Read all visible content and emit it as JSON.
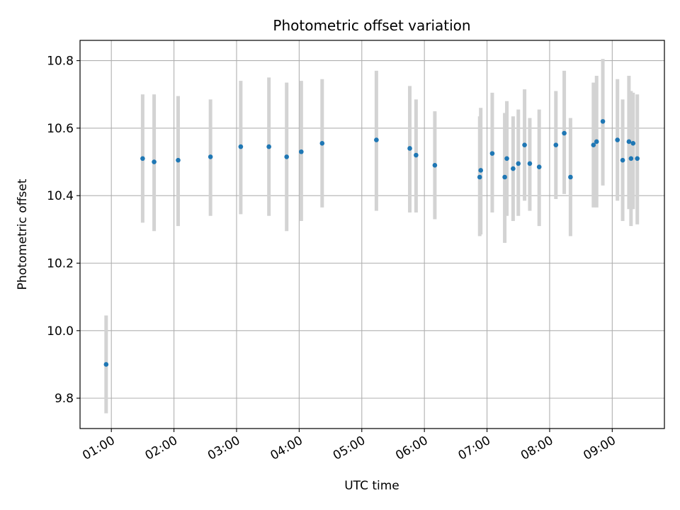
{
  "chart_data": {
    "type": "scatter",
    "title": "Photometric offset variation",
    "xlabel": "UTC time",
    "ylabel": "Photometric offset",
    "x_tick_labels": [
      "01:00",
      "02:00",
      "03:00",
      "04:00",
      "05:00",
      "06:00",
      "07:00",
      "08:00",
      "09:00"
    ],
    "y_tick_labels": [
      "9.8",
      "10.0",
      "10.2",
      "10.4",
      "10.6",
      "10.8"
    ],
    "y_ticks": [
      9.8,
      10.0,
      10.2,
      10.4,
      10.6,
      10.8
    ],
    "xlim": [
      "00:30",
      "09:50"
    ],
    "ylim": [
      9.71,
      10.86
    ],
    "grid": true,
    "colors": {
      "marker": "#1f77b4",
      "errorbar": "#d3d3d3",
      "grid": "#b0b0b0"
    },
    "points": [
      {
        "x": "00:55",
        "y": 9.9,
        "lo": 9.755,
        "hi": 10.045
      },
      {
        "x": "01:30",
        "y": 10.51,
        "lo": 10.32,
        "hi": 10.7
      },
      {
        "x": "01:41",
        "y": 10.5,
        "lo": 10.295,
        "hi": 10.7
      },
      {
        "x": "02:04",
        "y": 10.505,
        "lo": 10.31,
        "hi": 10.695
      },
      {
        "x": "02:35",
        "y": 10.515,
        "lo": 10.34,
        "hi": 10.685
      },
      {
        "x": "03:04",
        "y": 10.545,
        "lo": 10.345,
        "hi": 10.74
      },
      {
        "x": "03:31",
        "y": 10.545,
        "lo": 10.34,
        "hi": 10.75
      },
      {
        "x": "03:48",
        "y": 10.515,
        "lo": 10.295,
        "hi": 10.735
      },
      {
        "x": "04:02",
        "y": 10.53,
        "lo": 10.325,
        "hi": 10.74
      },
      {
        "x": "04:22",
        "y": 10.555,
        "lo": 10.365,
        "hi": 10.745
      },
      {
        "x": "05:14",
        "y": 10.565,
        "lo": 10.355,
        "hi": 10.77
      },
      {
        "x": "05:46",
        "y": 10.54,
        "lo": 10.35,
        "hi": 10.725
      },
      {
        "x": "05:52",
        "y": 10.52,
        "lo": 10.35,
        "hi": 10.685
      },
      {
        "x": "06:10",
        "y": 10.49,
        "lo": 10.33,
        "hi": 10.65
      },
      {
        "x": "06:53",
        "y": 10.455,
        "lo": 10.28,
        "hi": 10.635
      },
      {
        "x": "06:54",
        "y": 10.475,
        "lo": 10.285,
        "hi": 10.66
      },
      {
        "x": "07:05",
        "y": 10.525,
        "lo": 10.35,
        "hi": 10.705
      },
      {
        "x": "07:17",
        "y": 10.455,
        "lo": 10.26,
        "hi": 10.645
      },
      {
        "x": "07:19",
        "y": 10.51,
        "lo": 10.34,
        "hi": 10.68
      },
      {
        "x": "07:25",
        "y": 10.48,
        "lo": 10.325,
        "hi": 10.635
      },
      {
        "x": "07:30",
        "y": 10.495,
        "lo": 10.34,
        "hi": 10.655
      },
      {
        "x": "07:36",
        "y": 10.55,
        "lo": 10.385,
        "hi": 10.715
      },
      {
        "x": "07:41",
        "y": 10.495,
        "lo": 10.355,
        "hi": 10.63
      },
      {
        "x": "07:50",
        "y": 10.485,
        "lo": 10.31,
        "hi": 10.655
      },
      {
        "x": "08:06",
        "y": 10.55,
        "lo": 10.39,
        "hi": 10.71
      },
      {
        "x": "08:14",
        "y": 10.585,
        "lo": 10.405,
        "hi": 10.77
      },
      {
        "x": "08:20",
        "y": 10.455,
        "lo": 10.28,
        "hi": 10.63
      },
      {
        "x": "08:42",
        "y": 10.55,
        "lo": 10.365,
        "hi": 10.735
      },
      {
        "x": "08:45",
        "y": 10.56,
        "lo": 10.365,
        "hi": 10.755
      },
      {
        "x": "08:51",
        "y": 10.62,
        "lo": 10.43,
        "hi": 10.805
      },
      {
        "x": "09:05",
        "y": 10.565,
        "lo": 10.385,
        "hi": 10.745
      },
      {
        "x": "09:10",
        "y": 10.505,
        "lo": 10.325,
        "hi": 10.685
      },
      {
        "x": "09:16",
        "y": 10.56,
        "lo": 10.36,
        "hi": 10.755
      },
      {
        "x": "09:18",
        "y": 10.51,
        "lo": 10.31,
        "hi": 10.71
      },
      {
        "x": "09:20",
        "y": 10.555,
        "lo": 10.36,
        "hi": 10.705
      },
      {
        "x": "09:24",
        "y": 10.51,
        "lo": 10.315,
        "hi": 10.7
      }
    ]
  }
}
